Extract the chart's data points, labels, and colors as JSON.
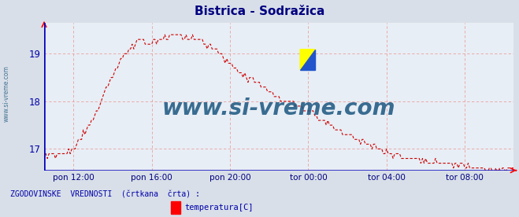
{
  "title": "Bistrica - Sodražica",
  "title_color": "#000080",
  "title_fontsize": 11,
  "bg_color": "#d8dfe8",
  "plot_bg_color": "#e8eef5",
  "axis_color": "#0000bb",
  "grid_color": "#e8a0a0",
  "line_color": "#cc0000",
  "ylabel_color": "#0000aa",
  "watermark": "www.si-vreme.com",
  "watermark_color": "#1a5580",
  "ylim": [
    16.55,
    19.65
  ],
  "yticks": [
    17,
    18,
    19
  ],
  "xtick_labels": [
    "pon 12:00",
    "pon 16:00",
    "pon 20:00",
    "tor 00:00",
    "tor 04:00",
    "tor 08:00"
  ],
  "xlabel_color": "#000080",
  "legend_line1": "ZGODOVINSKE  VREDNOSTI  (črtkana  črta) :",
  "legend_label": "temperatura[C]",
  "legend_color": "#0000aa",
  "sidewater_color": "#336688",
  "num_points": 289
}
